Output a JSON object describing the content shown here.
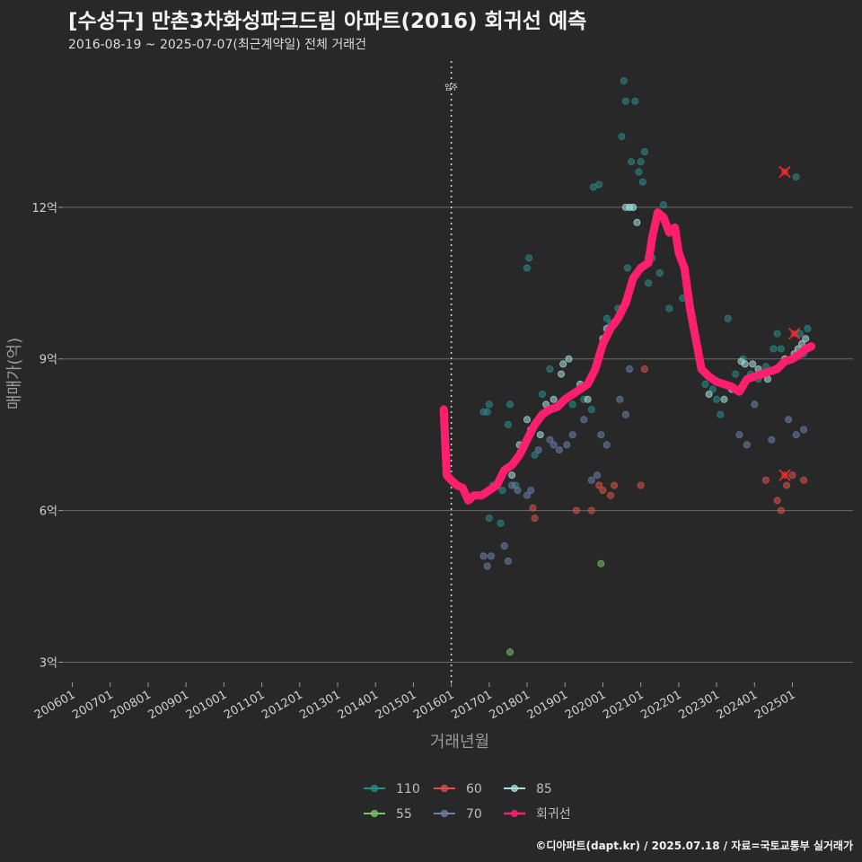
{
  "header": {
    "title": "[수성구] 만촌3차화성파크드림 아파트(2016) 회귀선 예측",
    "subtitle": "2016-08-19 ~ 2025-07-07(최근계약일) 전체 거래건"
  },
  "footer": {
    "credit": "©디아파트(dapt.kr) / 2025.07.18 / 자료=국토교통부 실거래가"
  },
  "colors": {
    "110": "#2a8c8c",
    "55": "#7ac36a",
    "60": "#d9534f",
    "70": "#6a7faa",
    "85": "#a8e0e0",
    "regression": "#ff1f6e",
    "cancelled": "#ff2a2a"
  },
  "chart_data": {
    "type": "scatter",
    "xlabel": "거래년월",
    "ylabel": "매매가(억)",
    "xlim": [
      2005.75,
      2026.6
    ],
    "ylim": [
      2.6,
      15.0
    ],
    "x_ticks": [
      {
        "x": 2006,
        "label": "200601"
      },
      {
        "x": 2007,
        "label": "200701"
      },
      {
        "x": 2008,
        "label": "200801"
      },
      {
        "x": 2009,
        "label": "200901"
      },
      {
        "x": 2010,
        "label": "201001"
      },
      {
        "x": 2011,
        "label": "201101"
      },
      {
        "x": 2012,
        "label": "201201"
      },
      {
        "x": 2013,
        "label": "201301"
      },
      {
        "x": 2014,
        "label": "201401"
      },
      {
        "x": 2015,
        "label": "201501"
      },
      {
        "x": 2016,
        "label": "201601"
      },
      {
        "x": 2017,
        "label": "201701"
      },
      {
        "x": 2018,
        "label": "201801"
      },
      {
        "x": 2019,
        "label": "201901"
      },
      {
        "x": 2020,
        "label": "202001"
      },
      {
        "x": 2021,
        "label": "202101"
      },
      {
        "x": 2022,
        "label": "202201"
      },
      {
        "x": 2023,
        "label": "202301"
      },
      {
        "x": 2024,
        "label": "202401"
      },
      {
        "x": 2025,
        "label": "202501"
      }
    ],
    "y_ticks": [
      {
        "y": 3,
        "label": "3억"
      },
      {
        "y": 6,
        "label": "6억"
      },
      {
        "y": 9,
        "label": "9억"
      },
      {
        "y": 12,
        "label": "12억"
      }
    ],
    "grid": true,
    "annotation": {
      "x": 2016.0,
      "label": "입주"
    },
    "legend": {
      "position": "bottom",
      "entries": [
        {
          "key": "110",
          "label": "110"
        },
        {
          "key": "60",
          "label": "60"
        },
        {
          "key": "85",
          "label": "85"
        },
        {
          "key": "55",
          "label": "55"
        },
        {
          "key": "70",
          "label": "70"
        },
        {
          "key": "regression",
          "label": "회귀선"
        }
      ]
    },
    "series": [
      {
        "name": "110",
        "key": "110",
        "points": [
          [
            2016.85,
            7.95
          ],
          [
            2016.95,
            7.95
          ],
          [
            2017.0,
            8.1
          ],
          [
            2017.0,
            5.85
          ],
          [
            2017.1,
            6.5
          ],
          [
            2017.3,
            5.75
          ],
          [
            2017.35,
            6.4
          ],
          [
            2017.5,
            7.7
          ],
          [
            2017.55,
            8.1
          ],
          [
            2017.7,
            6.5
          ],
          [
            2018.0,
            10.8
          ],
          [
            2018.05,
            11.0
          ],
          [
            2018.2,
            7.1
          ],
          [
            2018.4,
            8.3
          ],
          [
            2018.6,
            8.8
          ],
          [
            2019.2,
            8.1
          ],
          [
            2019.5,
            8.2
          ],
          [
            2019.7,
            8.0
          ],
          [
            2019.75,
            12.4
          ],
          [
            2019.9,
            12.45
          ],
          [
            2020.1,
            9.8
          ],
          [
            2020.2,
            9.7
          ],
          [
            2020.4,
            10.0
          ],
          [
            2020.5,
            13.4
          ],
          [
            2020.55,
            14.5
          ],
          [
            2020.6,
            14.1
          ],
          [
            2020.65,
            10.8
          ],
          [
            2020.7,
            12.0
          ],
          [
            2020.75,
            12.9
          ],
          [
            2020.8,
            12.0
          ],
          [
            2020.85,
            14.1
          ],
          [
            2020.95,
            12.7
          ],
          [
            2021.0,
            12.9
          ],
          [
            2021.05,
            12.5
          ],
          [
            2021.1,
            13.1
          ],
          [
            2021.2,
            10.5
          ],
          [
            2021.3,
            11.0
          ],
          [
            2021.5,
            10.7
          ],
          [
            2021.6,
            12.05
          ],
          [
            2021.75,
            10.0
          ],
          [
            2022.1,
            10.2
          ],
          [
            2022.7,
            8.5
          ],
          [
            2022.9,
            8.4
          ],
          [
            2023.0,
            8.2
          ],
          [
            2023.1,
            7.9
          ],
          [
            2023.2,
            8.5
          ],
          [
            2023.3,
            9.8
          ],
          [
            2023.5,
            8.7
          ],
          [
            2023.7,
            9.0
          ],
          [
            2023.9,
            8.7
          ],
          [
            2024.1,
            8.6
          ],
          [
            2024.3,
            8.85
          ],
          [
            2024.5,
            9.2
          ],
          [
            2024.6,
            9.5
          ],
          [
            2024.7,
            9.2
          ],
          [
            2025.1,
            12.6
          ],
          [
            2025.2,
            9.5
          ],
          [
            2025.3,
            9.1
          ],
          [
            2025.4,
            9.6
          ]
        ]
      },
      {
        "name": "55",
        "key": "55",
        "points": [
          [
            2017.55,
            3.2
          ],
          [
            2019.95,
            4.95
          ]
        ]
      },
      {
        "name": "60",
        "key": "60",
        "points": [
          [
            2018.15,
            6.05
          ],
          [
            2018.2,
            5.85
          ],
          [
            2019.3,
            6.0
          ],
          [
            2019.7,
            6.0
          ],
          [
            2019.9,
            6.5
          ],
          [
            2020.0,
            6.4
          ],
          [
            2020.2,
            6.3
          ],
          [
            2020.3,
            6.5
          ],
          [
            2021.0,
            6.5
          ],
          [
            2021.1,
            8.8
          ],
          [
            2024.3,
            6.6
          ],
          [
            2024.6,
            6.2
          ],
          [
            2024.7,
            6.0
          ],
          [
            2024.85,
            6.5
          ],
          [
            2025.0,
            6.7
          ],
          [
            2025.3,
            6.6
          ],
          [
            2025.4,
            9.2
          ]
        ]
      },
      {
        "name": "70",
        "key": "70",
        "points": [
          [
            2016.85,
            5.1
          ],
          [
            2016.95,
            4.9
          ],
          [
            2017.05,
            5.1
          ],
          [
            2017.4,
            5.3
          ],
          [
            2017.5,
            5.0
          ],
          [
            2017.6,
            6.5
          ],
          [
            2017.75,
            6.4
          ],
          [
            2018.0,
            6.3
          ],
          [
            2018.1,
            6.4
          ],
          [
            2018.3,
            7.2
          ],
          [
            2018.6,
            7.4
          ],
          [
            2018.7,
            7.3
          ],
          [
            2018.85,
            7.2
          ],
          [
            2019.05,
            7.3
          ],
          [
            2019.2,
            7.5
          ],
          [
            2019.5,
            7.8
          ],
          [
            2019.7,
            6.6
          ],
          [
            2019.85,
            6.7
          ],
          [
            2019.95,
            7.5
          ],
          [
            2020.1,
            7.3
          ],
          [
            2020.45,
            8.2
          ],
          [
            2020.6,
            7.9
          ],
          [
            2020.7,
            8.8
          ],
          [
            2023.6,
            7.5
          ],
          [
            2023.8,
            7.3
          ],
          [
            2024.0,
            8.1
          ],
          [
            2024.45,
            7.4
          ],
          [
            2024.9,
            7.8
          ],
          [
            2025.1,
            7.5
          ],
          [
            2025.3,
            7.6
          ]
        ]
      },
      {
        "name": "85",
        "key": "85",
        "points": [
          [
            2017.6,
            6.7
          ],
          [
            2017.8,
            7.3
          ],
          [
            2018.0,
            7.8
          ],
          [
            2018.1,
            7.6
          ],
          [
            2018.35,
            7.5
          ],
          [
            2018.5,
            8.1
          ],
          [
            2018.7,
            8.2
          ],
          [
            2018.9,
            8.7
          ],
          [
            2018.95,
            8.9
          ],
          [
            2019.1,
            9.0
          ],
          [
            2019.4,
            8.5
          ],
          [
            2019.6,
            8.2
          ],
          [
            2020.0,
            9.4
          ],
          [
            2020.1,
            9.6
          ],
          [
            2020.3,
            9.7
          ],
          [
            2020.6,
            12.0
          ],
          [
            2020.7,
            12.0
          ],
          [
            2020.8,
            12.0
          ],
          [
            2020.9,
            11.7
          ],
          [
            2021.2,
            11.0
          ],
          [
            2022.8,
            8.3
          ],
          [
            2023.2,
            8.2
          ],
          [
            2023.4,
            8.4
          ],
          [
            2023.65,
            8.95
          ],
          [
            2023.75,
            8.9
          ],
          [
            2023.95,
            8.9
          ],
          [
            2024.1,
            8.8
          ],
          [
            2024.35,
            8.6
          ],
          [
            2024.55,
            8.8
          ],
          [
            2024.8,
            9.0
          ],
          [
            2025.05,
            9.1
          ],
          [
            2025.15,
            9.2
          ],
          [
            2025.25,
            9.3
          ],
          [
            2025.35,
            9.4
          ]
        ]
      },
      {
        "name": "회귀선",
        "key": "regression",
        "points": [
          [
            2015.8,
            8.0
          ],
          [
            2015.88,
            6.7
          ],
          [
            2016.0,
            6.6
          ],
          [
            2016.15,
            6.5
          ],
          [
            2016.3,
            6.45
          ],
          [
            2016.45,
            6.2
          ],
          [
            2016.6,
            6.3
          ],
          [
            2016.8,
            6.3
          ],
          [
            2017.0,
            6.4
          ],
          [
            2017.2,
            6.5
          ],
          [
            2017.4,
            6.8
          ],
          [
            2017.6,
            6.9
          ],
          [
            2017.8,
            7.1
          ],
          [
            2018.0,
            7.4
          ],
          [
            2018.2,
            7.7
          ],
          [
            2018.4,
            7.9
          ],
          [
            2018.6,
            8.0
          ],
          [
            2018.8,
            8.05
          ],
          [
            2019.0,
            8.2
          ],
          [
            2019.2,
            8.3
          ],
          [
            2019.4,
            8.4
          ],
          [
            2019.6,
            8.5
          ],
          [
            2019.8,
            8.8
          ],
          [
            2020.0,
            9.3
          ],
          [
            2020.2,
            9.6
          ],
          [
            2020.4,
            9.8
          ],
          [
            2020.6,
            10.1
          ],
          [
            2020.8,
            10.6
          ],
          [
            2021.0,
            10.8
          ],
          [
            2021.2,
            10.9
          ],
          [
            2021.3,
            11.4
          ],
          [
            2021.45,
            11.9
          ],
          [
            2021.6,
            11.8
          ],
          [
            2021.75,
            11.5
          ],
          [
            2021.9,
            11.6
          ],
          [
            2022.0,
            11.1
          ],
          [
            2022.15,
            10.8
          ],
          [
            2022.3,
            10.0
          ],
          [
            2022.45,
            9.4
          ],
          [
            2022.6,
            8.8
          ],
          [
            2022.8,
            8.65
          ],
          [
            2023.0,
            8.55
          ],
          [
            2023.2,
            8.5
          ],
          [
            2023.4,
            8.45
          ],
          [
            2023.6,
            8.35
          ],
          [
            2023.8,
            8.6
          ],
          [
            2024.0,
            8.65
          ],
          [
            2024.2,
            8.7
          ],
          [
            2024.4,
            8.75
          ],
          [
            2024.6,
            8.8
          ],
          [
            2024.8,
            8.95
          ],
          [
            2025.0,
            9.0
          ],
          [
            2025.2,
            9.1
          ],
          [
            2025.35,
            9.2
          ],
          [
            2025.5,
            9.25
          ]
        ]
      }
    ],
    "cancelled_points": [
      [
        2024.8,
        12.7
      ],
      [
        2024.8,
        6.7
      ],
      [
        2025.05,
        9.5
      ]
    ]
  }
}
